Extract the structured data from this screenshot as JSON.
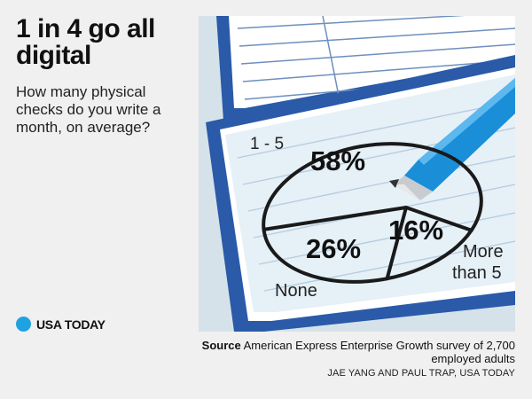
{
  "headline": "1 in 4 go all digital",
  "question": "How many physical checks do you write a month, on average?",
  "brand": "USA TODAY",
  "source_label": "Source",
  "source_text": "American Express Enterprise Growth survey of 2,700 employed adults",
  "credit": "JAE YANG AND PAUL TRAP, USA TODAY",
  "colors": {
    "background": "#f0f0f0",
    "art_background": "#d8e4ec",
    "checkbook_blue": "#2a5aa8",
    "paper": "#e8f1f8",
    "pen_blue": "#1a8fd8",
    "brand_dot": "#1fa3e0"
  },
  "chart_data": {
    "type": "pie",
    "title": "How many physical checks do you write a month, on average?",
    "categories": [
      "1 - 5",
      "More than 5",
      "None"
    ],
    "values": [
      58,
      16,
      26
    ],
    "value_labels": [
      "58%",
      "16%",
      "26%"
    ],
    "unit": "%"
  }
}
